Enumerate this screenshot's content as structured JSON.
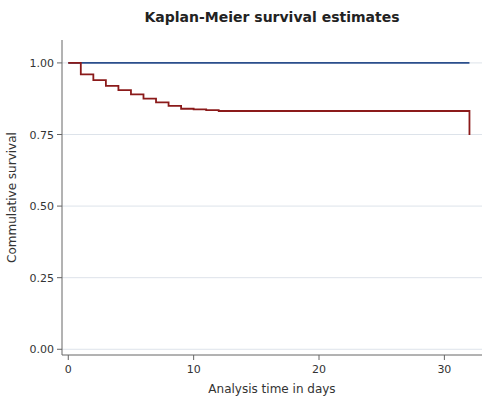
{
  "chart_data": {
    "type": "step",
    "title": "Kaplan-Meier survival estimates",
    "x_label": "Analysis time in days",
    "y_label": "Commulative survival",
    "xlim": [
      -0.5,
      33
    ],
    "ylim": [
      -0.02,
      1.08
    ],
    "xticks": [
      0,
      10,
      20,
      30
    ],
    "yticks": [
      {
        "value": 0.0,
        "label": "0.00"
      },
      0.25,
      {
        "value": 0.5,
        "label": "0.50"
      },
      0.75,
      {
        "value": 1.0,
        "label": "1.00"
      }
    ],
    "grid": true,
    "series": [
      {
        "color": "#2b4f8c",
        "x": [
          0,
          1,
          32
        ],
        "values": [
          1.0,
          1.0,
          1.0
        ]
      },
      {
        "color": "#8b1a1a",
        "x": [
          0,
          1,
          2,
          3,
          4,
          5,
          6,
          7,
          8,
          9,
          10,
          11,
          12,
          21,
          32
        ],
        "values": [
          1.0,
          0.96,
          0.94,
          0.92,
          0.905,
          0.89,
          0.875,
          0.862,
          0.85,
          0.84,
          0.838,
          0.835,
          0.832,
          0.832,
          0.748
        ]
      }
    ]
  }
}
